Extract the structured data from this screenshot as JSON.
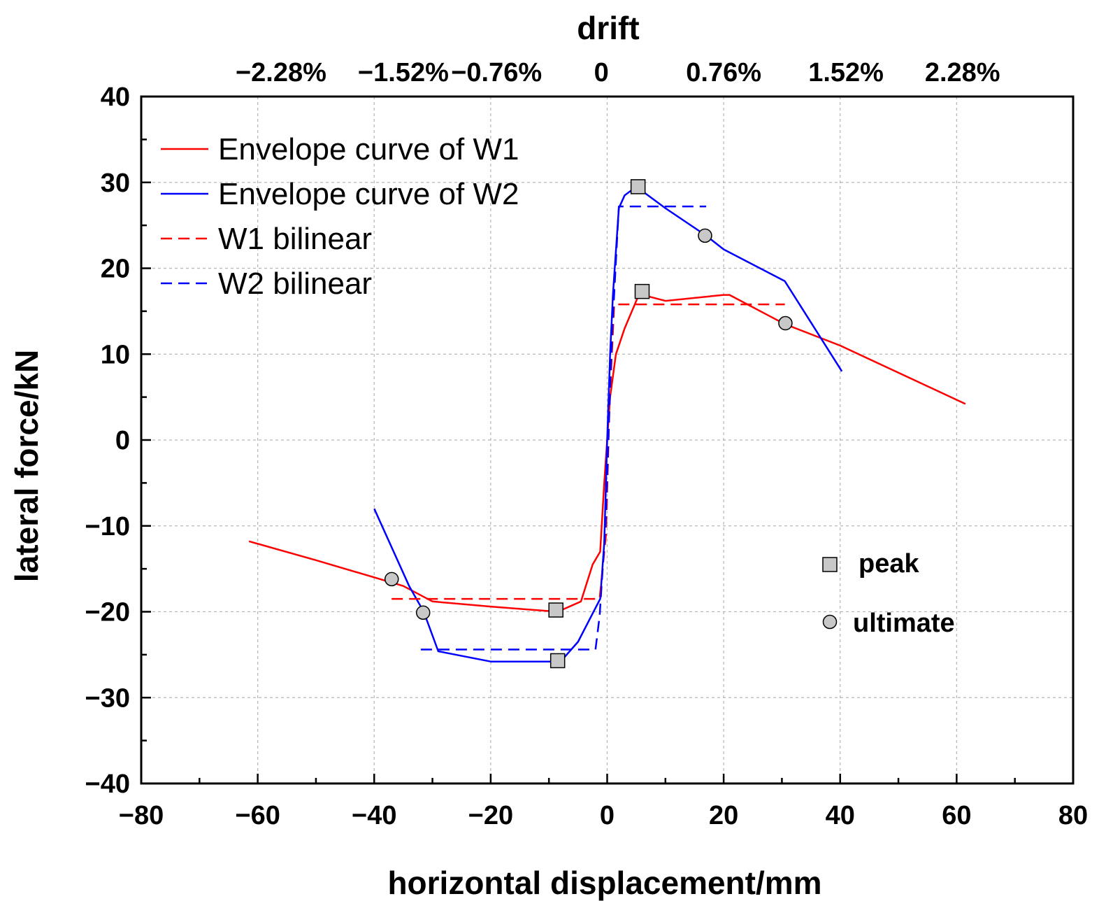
{
  "chart_data": {
    "type": "line",
    "xlabel": "horizontal displacement/mm",
    "ylabel": "lateral force/kN",
    "top_axis_title": "drift",
    "xlim": [
      -80,
      80
    ],
    "ylim": [
      -40,
      40
    ],
    "x_ticks": [
      -80,
      -60,
      -40,
      -20,
      0,
      20,
      40,
      60,
      80
    ],
    "x_tick_labels": [
      "−80",
      "−60",
      "−40",
      "−20",
      "0",
      "20",
      "40",
      "60",
      "80"
    ],
    "y_ticks": [
      40,
      30,
      20,
      10,
      0,
      -10,
      -20,
      -30,
      -40
    ],
    "y_tick_labels": [
      "40",
      "30",
      "20",
      "10",
      "0",
      "−10",
      "−20",
      "−30",
      "−40"
    ],
    "top_ticks": [
      {
        "x": -56,
        "label": "−2.28%"
      },
      {
        "x": -35,
        "label": "−1.52%"
      },
      {
        "x": -19,
        "label": "−0.76%"
      },
      {
        "x": -1,
        "label": "0"
      },
      {
        "x": 20,
        "label": "0.76%"
      },
      {
        "x": 41,
        "label": "1.52%"
      },
      {
        "x": 61,
        "label": "2.28%"
      }
    ],
    "series": [
      {
        "name": "Envelope curve of W1",
        "color": "#ff0000",
        "dash": "solid",
        "points": [
          [
            -61.5,
            -11.8
          ],
          [
            -50,
            -14
          ],
          [
            -35,
            -17
          ],
          [
            -30,
            -18.8
          ],
          [
            -20,
            -19.4
          ],
          [
            -8.5,
            -20
          ],
          [
            -4.5,
            -18.8
          ],
          [
            -2.5,
            -14.5
          ],
          [
            -1.2,
            -13
          ],
          [
            -0.5,
            -5
          ],
          [
            0,
            0
          ],
          [
            0.5,
            5
          ],
          [
            1.5,
            10
          ],
          [
            3,
            13
          ],
          [
            5.5,
            17
          ],
          [
            10,
            16.2
          ],
          [
            20,
            16.9
          ],
          [
            21,
            16.9
          ],
          [
            30.5,
            13.5
          ],
          [
            40,
            11
          ],
          [
            61.5,
            4.2
          ]
        ]
      },
      {
        "name": "Envelope curve of W2",
        "color": "#0000ff",
        "dash": "solid",
        "points": [
          [
            -40,
            -8
          ],
          [
            -34,
            -17
          ],
          [
            -31.5,
            -20
          ],
          [
            -29,
            -24.6
          ],
          [
            -20,
            -25.8
          ],
          [
            -8,
            -25.8
          ],
          [
            -5,
            -23.5
          ],
          [
            -1.2,
            -18.5
          ],
          [
            -0.5,
            -12
          ],
          [
            0,
            0
          ],
          [
            0.5,
            10
          ],
          [
            1,
            17
          ],
          [
            2,
            27
          ],
          [
            3,
            28.5
          ],
          [
            5,
            29.5
          ],
          [
            10,
            27
          ],
          [
            17,
            23.8
          ],
          [
            20,
            22.2
          ],
          [
            30.5,
            18.5
          ],
          [
            40.3,
            8
          ]
        ]
      },
      {
        "name": "W1 bilinear",
        "color": "#ff0000",
        "dash": "dashed",
        "points": [
          [
            -37,
            -18.5
          ],
          [
            -1.3,
            -18.5
          ],
          [
            -0.2,
            -11
          ],
          [
            0.4,
            4
          ],
          [
            1.2,
            15.8
          ],
          [
            30.5,
            15.8
          ]
        ]
      },
      {
        "name": "W2 bilinear",
        "color": "#0000ff",
        "dash": "dashed",
        "points": [
          [
            -32,
            -24.4
          ],
          [
            -2,
            -24.4
          ],
          [
            -1.3,
            -20.5
          ],
          [
            -0.3,
            -10
          ],
          [
            0.8,
            12
          ],
          [
            2,
            27.2
          ],
          [
            17,
            27.2
          ]
        ]
      }
    ],
    "peak_points": [
      [
        5.3,
        29.5
      ],
      [
        6,
        17.3
      ],
      [
        -8.8,
        -19.8
      ],
      [
        -8.5,
        -25.7
      ]
    ],
    "ultimate_points": [
      [
        16.8,
        23.8
      ],
      [
        30.6,
        13.6
      ],
      [
        -37,
        -16.2
      ],
      [
        -31.6,
        -20.1
      ]
    ],
    "legend": {
      "placement": "top-left",
      "entries": [
        "Envelope curve of W1",
        "Envelope curve of W2",
        "W1 bilinear",
        "W2 bilinear"
      ]
    },
    "marker_legend": {
      "peak_label": "peak",
      "ultimate_label": "ultimate"
    },
    "grid": true,
    "marker_fill": "#c8c8c8"
  }
}
